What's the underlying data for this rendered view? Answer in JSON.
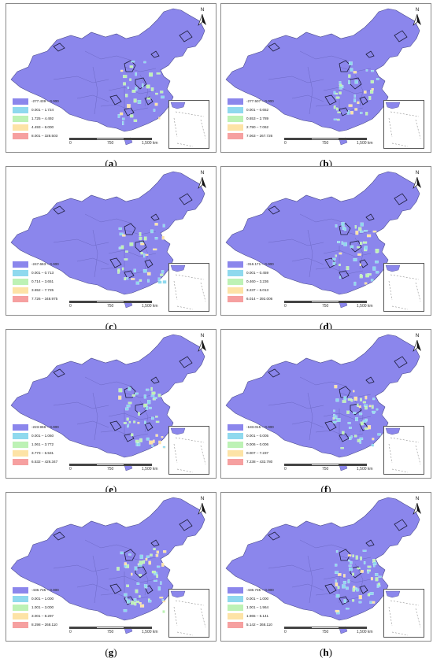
{
  "colors": {
    "c1": "#8b86ec",
    "c2": "#8fd9ee",
    "c3": "#bdf2b5",
    "c4": "#fde3a6",
    "c5": "#f6a0a0"
  },
  "scale_labels": [
    "0",
    "750",
    "1,500 km"
  ],
  "north_label": "N",
  "panels": [
    {
      "caption_open": "(",
      "letter": "a",
      "caption_close": ")",
      "legend": [
        "-277.439 – 0.000",
        "0.001 – 1.724",
        "1.725 – 4.492",
        "4.493 – 8.000",
        "8.001 – 328.503"
      ]
    },
    {
      "caption_open": "(",
      "letter": "b",
      "caption_close": ")",
      "legend": [
        "-277.507 – 0.000",
        "0.001 – 0.652",
        "0.653 – 2.789",
        "2.790 – 7.062",
        "7.063 – 267.726"
      ]
    },
    {
      "caption_open": "(",
      "letter": "c",
      "caption_close": ")",
      "legend": [
        "-247.663 – 0.000",
        "0.001 – 0.713",
        "0.714 – 3.651",
        "3.652 – 7.725",
        "7.726 – 348.975"
      ]
    },
    {
      "caption_open": "(",
      "letter": "d",
      "caption_close": ")",
      "legend": [
        "-316.171 – 0.000",
        "0.001 – 0.459",
        "0.460 – 3.236",
        "3.237 – 6.013",
        "6.014 – 392.006"
      ]
    },
    {
      "caption_open": "(",
      "letter": "e",
      "caption_close": ")",
      "legend": [
        "-223.968 – 0.000",
        "0.001 – 1.060",
        "1.061 – 3.772",
        "3.773 – 6.531",
        "6.532 – 426.347"
      ]
    },
    {
      "caption_open": "(",
      "letter": "f",
      "caption_close": ")",
      "legend": [
        "-183.015 – 0.000",
        "0.001 – 0.005",
        "0.006 – 0.006",
        "0.007 – 7.237",
        "7.238 – 432.780"
      ]
    },
    {
      "caption_open": "(",
      "letter": "g",
      "caption_close": ")",
      "legend": [
        "-436.735 – 0.000",
        "0.001 – 1.000",
        "1.001 – 3.000",
        "3.001 – 8.297",
        "8.298 – 268.110"
      ]
    },
    {
      "caption_open": "(",
      "letter": "h",
      "caption_close": ")",
      "legend": [
        "-436.735 – 0.000",
        "0.001 – 1.000",
        "1.001 – 1.964",
        "1.965 – 5.141",
        "5.142 – 368.110"
      ]
    }
  ]
}
